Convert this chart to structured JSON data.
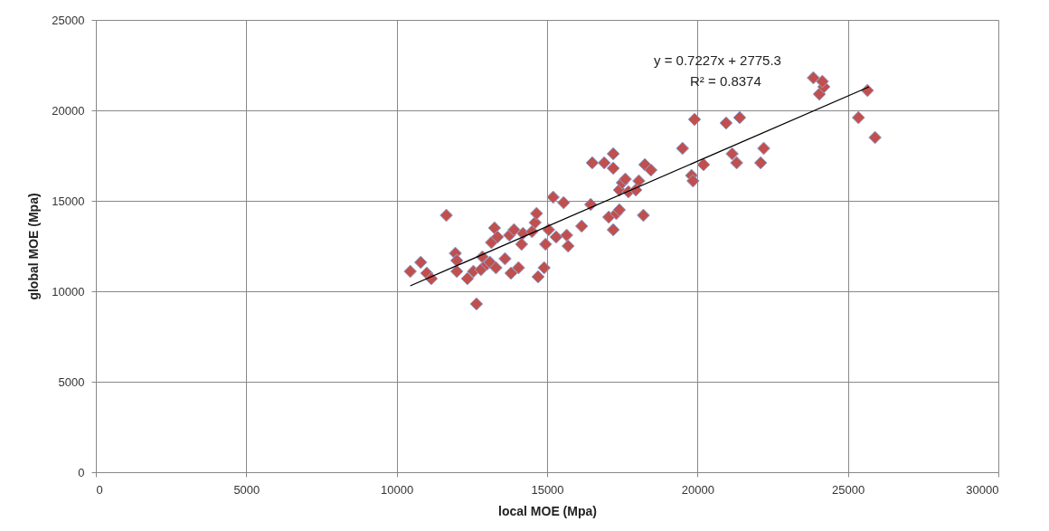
{
  "chart_data": {
    "type": "scatter",
    "xlabel": "local MOE (Mpa)",
    "ylabel": "global MOE (Mpa)",
    "xlim": [
      0,
      30000
    ],
    "xticks": [
      0,
      5000,
      10000,
      15000,
      20000,
      25000,
      30000
    ],
    "ylim": [
      0,
      25000
    ],
    "yticks": [
      0,
      5000,
      10000,
      15000,
      20000,
      25000
    ],
    "grid": true,
    "marker": "diamond",
    "annotations": [
      "y = 0.7227x + 2775.3",
      "R² = 0.8374"
    ],
    "series": [
      {
        "color": "#c0504d",
        "x": [
          10450,
          10800,
          11000,
          11150,
          11650,
          11950,
          12000,
          12000,
          12350,
          12550,
          12650,
          12800,
          12850,
          13000,
          13100,
          13150,
          13250,
          13300,
          13350,
          13600,
          13750,
          13800,
          13900,
          14050,
          14150,
          14200,
          14500,
          14600,
          14650,
          14700,
          14900,
          14950,
          15050,
          15200,
          15300,
          15550,
          15650,
          15700,
          16150,
          16450,
          16500,
          16900,
          17050,
          17200,
          17200,
          17200,
          17300,
          17400,
          17400,
          17500,
          17600,
          17700,
          17950,
          18050,
          18200,
          18250,
          18450,
          19500,
          19800,
          19850,
          19900,
          20200,
          20950,
          21150,
          21300,
          21400,
          22100,
          22200,
          23850,
          24050,
          24200,
          24150,
          25350,
          25650,
          25900
        ],
        "values": [
          11100,
          11600,
          11000,
          10700,
          14200,
          12100,
          11700,
          11100,
          10700,
          11100,
          9300,
          11200,
          11900,
          11500,
          11600,
          12700,
          13500,
          11300,
          13000,
          11800,
          13100,
          11000,
          13400,
          11300,
          12600,
          13200,
          13300,
          13800,
          14300,
          10800,
          11300,
          12600,
          13400,
          15200,
          13000,
          14900,
          13100,
          12500,
          13600,
          14800,
          17100,
          17100,
          14100,
          17600,
          16800,
          13400,
          14300,
          15600,
          14500,
          16000,
          16200,
          15500,
          15600,
          16100,
          14200,
          17000,
          16700,
          17900,
          16400,
          16100,
          19500,
          17000,
          19300,
          17600,
          17100,
          19600,
          17100,
          17900,
          21800,
          20900,
          21300,
          21600,
          19600,
          21100,
          18500
        ]
      },
      {
        "type": "line",
        "color": "#000000",
        "marker": "none",
        "x": [
          10450,
          25700
        ],
        "values": [
          10300,
          21300
        ]
      }
    ]
  }
}
